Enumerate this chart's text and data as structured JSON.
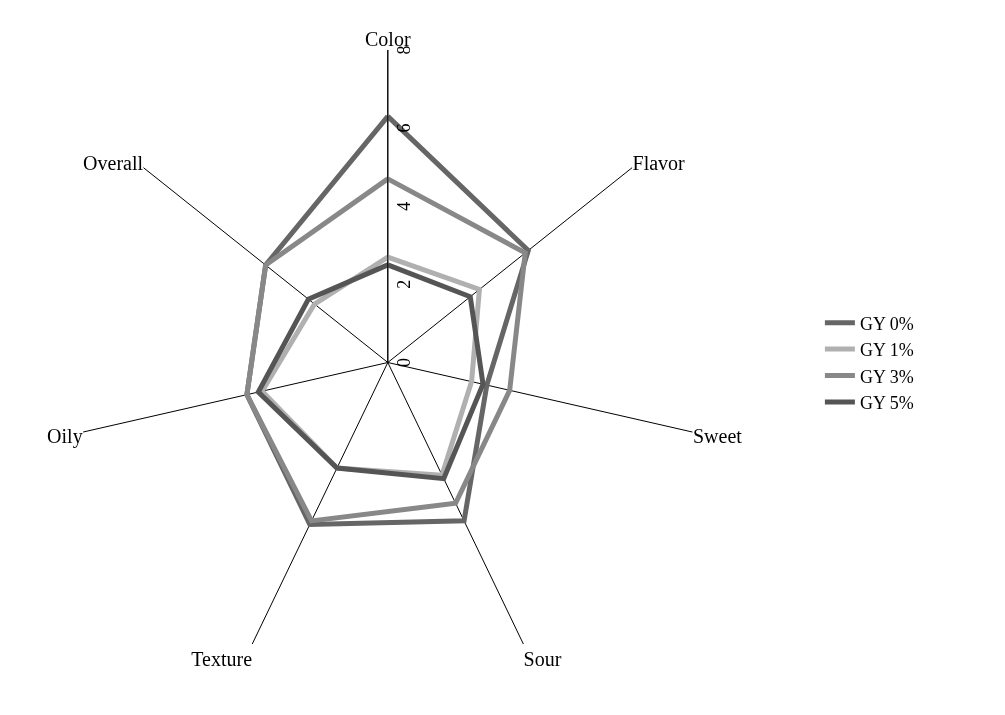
{
  "chart_data": {
    "type": "radar",
    "categories": [
      "Color",
      "Flavor",
      "Sweet",
      "Sour",
      "Texture",
      "Oily",
      "Overall"
    ],
    "ylim": [
      0,
      8
    ],
    "yticks": [
      0,
      2,
      4,
      6,
      8
    ],
    "legend": "right",
    "grid": "x",
    "series": [
      {
        "name": "GY 0%",
        "color": "#666666",
        "values": [
          6.3,
          4.6,
          2.6,
          4.5,
          4.6,
          3.7,
          4.0
        ]
      },
      {
        "name": "GY 1%",
        "color": "#b0b0b0",
        "values": [
          2.7,
          3.0,
          2.2,
          3.2,
          3.0,
          3.3,
          2.4
        ]
      },
      {
        "name": "GY 3%",
        "color": "#888888",
        "values": [
          4.7,
          4.5,
          3.2,
          4.0,
          4.5,
          3.7,
          4.0
        ]
      },
      {
        "name": "GY 5%",
        "color": "#555555",
        "values": [
          2.5,
          2.7,
          2.5,
          3.3,
          3.0,
          3.4,
          2.6
        ]
      }
    ]
  }
}
